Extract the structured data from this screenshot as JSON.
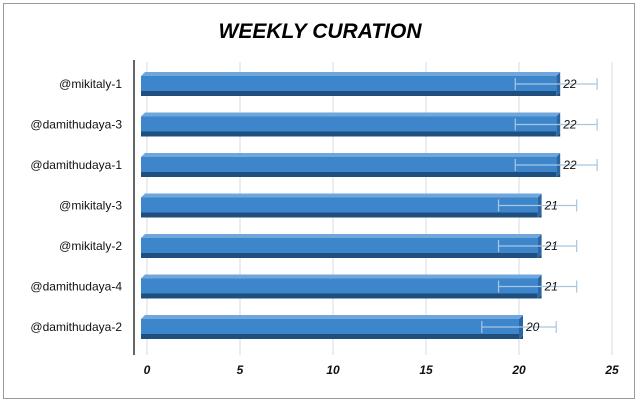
{
  "chart_data": {
    "type": "bar",
    "orientation": "horizontal",
    "title": "WEEKLY CURATION",
    "categories": [
      "@mikitaly-1",
      "@damithudaya-3",
      "@damithudaya-1",
      "@mikitaly-3",
      "@mikitaly-2",
      "@damithudaya-4",
      "@damithudaya-2"
    ],
    "values": [
      22,
      22,
      22,
      21,
      21,
      21,
      20
    ],
    "error_bars": [
      {
        "low": 19.8,
        "high": 24.2
      },
      {
        "low": 19.8,
        "high": 24.2
      },
      {
        "low": 19.8,
        "high": 24.2
      },
      {
        "low": 18.9,
        "high": 23.1
      },
      {
        "low": 18.9,
        "high": 23.1
      },
      {
        "low": 18.9,
        "high": 23.1
      },
      {
        "low": 18.0,
        "high": 22.0
      }
    ],
    "xlim": [
      0,
      25
    ],
    "x_ticks": [
      "0",
      "5",
      "10",
      "15",
      "20",
      "25"
    ],
    "grid": "vertical",
    "bar_color": "#3d86cc",
    "bar_dark_color": "#1f4f7f",
    "error_bar_color": "#a9c6e0"
  }
}
